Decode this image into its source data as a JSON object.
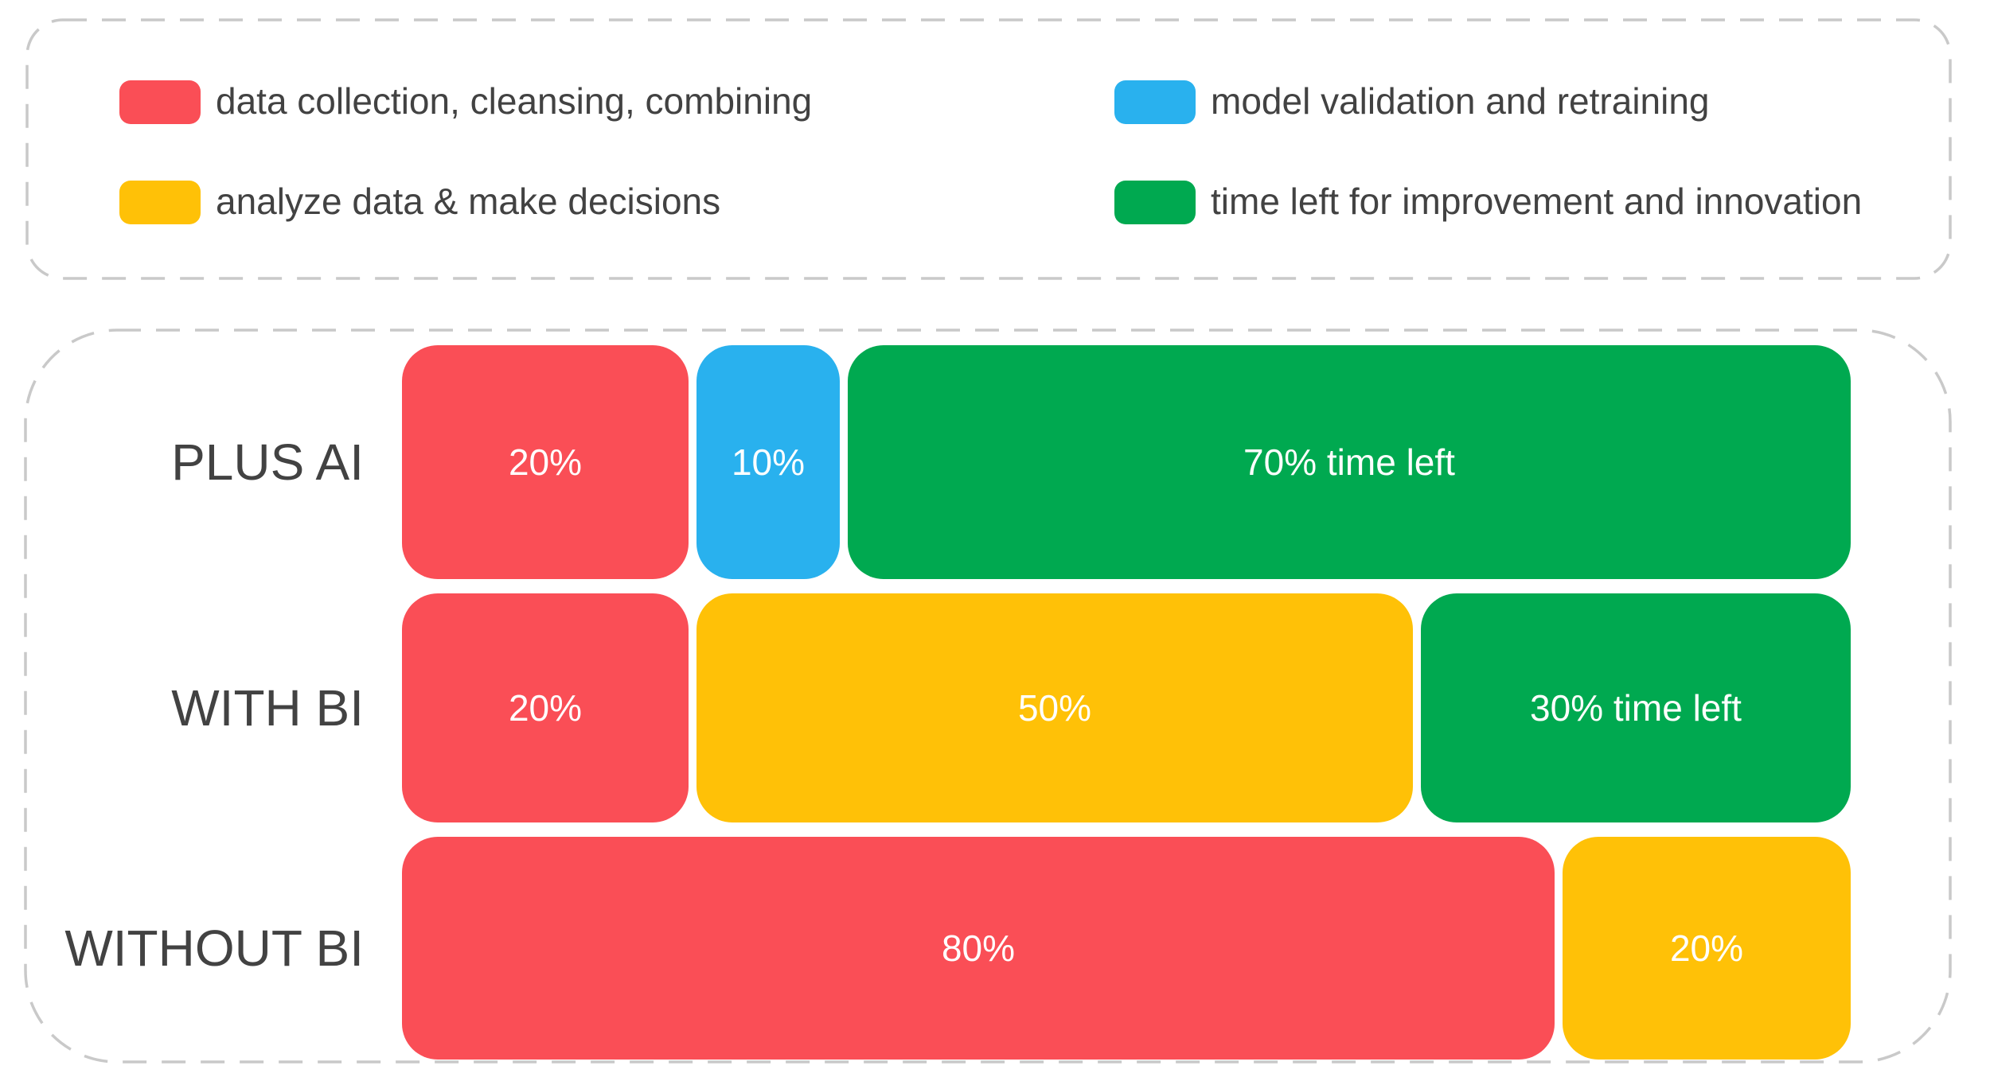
{
  "palette": {
    "red": "#FA4E56",
    "amber": "#FFC107",
    "blue": "#29B1EE",
    "green": "#00A950",
    "dash_border": "#C9C9C9",
    "label_text": "#424242",
    "bar_text": "#FFFFFF",
    "background": "#FFFFFF"
  },
  "legend": {
    "items": [
      {
        "label": "data collection, cleansing, combining",
        "color_key": "red"
      },
      {
        "label": "analyze data & make decisions",
        "color_key": "amber"
      },
      {
        "label": "model validation and retraining",
        "color_key": "blue"
      },
      {
        "label": "time left for improvement and innovation",
        "color_key": "green"
      }
    ]
  },
  "rows": [
    {
      "label": "PLUS AI",
      "segments": [
        {
          "value": 20,
          "label": "20%",
          "color_key": "red",
          "series": "data collection, cleansing, combining"
        },
        {
          "value": 10,
          "label": "10%",
          "color_key": "blue",
          "series": "model validation and retraining"
        },
        {
          "value": 70,
          "label": "70% time left",
          "color_key": "green",
          "series": "time left for improvement and innovation"
        }
      ]
    },
    {
      "label": "WITH BI",
      "segments": [
        {
          "value": 20,
          "label": "20%",
          "color_key": "red",
          "series": "data collection, cleansing, combining"
        },
        {
          "value": 50,
          "label": "50%",
          "color_key": "amber",
          "series": "analyze data & make decisions"
        },
        {
          "value": 30,
          "label": "30% time left",
          "color_key": "green",
          "series": "time left for improvement and innovation"
        }
      ]
    },
    {
      "label": "WITHOUT BI",
      "segments": [
        {
          "value": 80,
          "label": "80%",
          "color_key": "red",
          "series": "data collection, cleansing, combining"
        },
        {
          "value": 20,
          "label": "20%",
          "color_key": "amber",
          "series": "analyze data & make decisions"
        }
      ]
    }
  ],
  "chart_data": {
    "type": "bar",
    "orientation": "horizontal",
    "stacked": true,
    "grid": false,
    "legend_position": "top",
    "categories": [
      "PLUS AI",
      "WITH BI",
      "WITHOUT BI"
    ],
    "series": [
      {
        "name": "data collection, cleansing, combining",
        "color": "#FA4E56",
        "values": [
          20,
          20,
          80
        ]
      },
      {
        "name": "model validation and retraining",
        "color": "#29B1EE",
        "values": [
          10,
          0,
          0
        ]
      },
      {
        "name": "analyze data & make decisions",
        "color": "#FFC107",
        "values": [
          0,
          50,
          20
        ]
      },
      {
        "name": "time left for improvement and innovation",
        "color": "#00A950",
        "values": [
          70,
          30,
          0
        ]
      }
    ],
    "segment_labels": [
      [
        "20%",
        "10%",
        "70% time left"
      ],
      [
        "20%",
        "50%",
        "30% time left"
      ],
      [
        "80%",
        "20%"
      ]
    ],
    "xlim": [
      0,
      100
    ]
  }
}
